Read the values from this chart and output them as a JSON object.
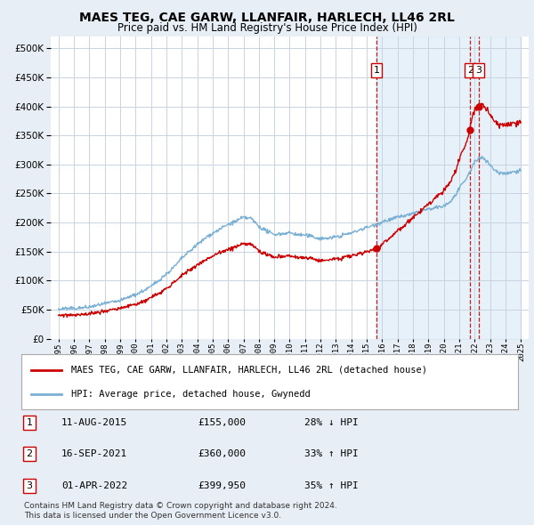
{
  "title": "MAES TEG, CAE GARW, LLANFAIR, HARLECH, LL46 2RL",
  "subtitle": "Price paid vs. HM Land Registry's House Price Index (HPI)",
  "ytick_vals": [
    0,
    50000,
    100000,
    150000,
    200000,
    250000,
    300000,
    350000,
    400000,
    450000,
    500000
  ],
  "xlim": [
    1994.5,
    2025.5
  ],
  "ylim": [
    0,
    520000
  ],
  "legend_entries": [
    "MAES TEG, CAE GARW, LLANFAIR, HARLECH, LL46 2RL (detached house)",
    "HPI: Average price, detached house, Gwynedd"
  ],
  "transactions": [
    {
      "label": "1",
      "date": "11-AUG-2015",
      "price": 155000,
      "price_str": "£155,000",
      "pct": "28% ↓ HPI",
      "year": 2015.62
    },
    {
      "label": "2",
      "date": "16-SEP-2021",
      "price": 360000,
      "price_str": "£360,000",
      "pct": "33% ↑ HPI",
      "year": 2021.71
    },
    {
      "label": "3",
      "date": "01-APR-2022",
      "price": 399950,
      "price_str": "£399,950",
      "pct": "35% ↑ HPI",
      "year": 2022.25
    }
  ],
  "footnote1": "Contains HM Land Registry data © Crown copyright and database right 2024.",
  "footnote2": "This data is licensed under the Open Government Licence v3.0.",
  "background_color": "#e8eef5",
  "plot_bg_color": "#ffffff",
  "grid_color": "#c8d4e0",
  "hpi_line_color": "#7ab0d4",
  "price_line_color": "#cc0000",
  "shade_color": "#d0e4f4"
}
